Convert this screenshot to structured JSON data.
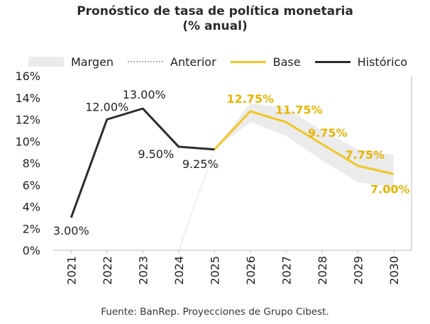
{
  "title_line1": "Pronóstico de tasa de política monetaria",
  "title_line2": "(% anual)",
  "source": "Fuente: BanRep. Proyecciones de Grupo Cibest.",
  "colors": {
    "historico": "#2b2b2b",
    "base": "#f2c623",
    "base_label": "#e8b400",
    "margen": "#ebebeb",
    "anterior": "#aaaaaa"
  },
  "chart_data": {
    "type": "line",
    "x": [
      "2021",
      "2022",
      "2023",
      "2024",
      "2025",
      "2026",
      "2027",
      "2028",
      "2029",
      "2030"
    ],
    "ylim": [
      0,
      16
    ],
    "yticks": [
      0,
      2,
      4,
      6,
      8,
      10,
      12,
      14,
      16
    ],
    "ytick_labels": [
      "0%",
      "2%",
      "4%",
      "6%",
      "8%",
      "10%",
      "12%",
      "14%",
      "16%"
    ],
    "legend_position": "top",
    "grid": false,
    "series": [
      {
        "name": "Margen",
        "kind": "band",
        "x": [
          "2025",
          "2026",
          "2027",
          "2028",
          "2029",
          "2030"
        ],
        "lower": [
          9.25,
          11.75,
          10.5,
          8.25,
          6.25,
          5.75
        ],
        "upper": [
          9.25,
          13.5,
          13.0,
          11.0,
          9.25,
          8.75
        ]
      },
      {
        "name": "Anterior",
        "kind": "dotted",
        "x": [
          "2024",
          "2025"
        ],
        "values": [
          0,
          9.25
        ]
      },
      {
        "name": "Base",
        "kind": "line",
        "x": [
          "2025",
          "2026",
          "2027",
          "2028",
          "2029",
          "2030"
        ],
        "values": [
          9.25,
          12.75,
          11.75,
          9.75,
          7.75,
          7.0
        ],
        "labels": [
          "",
          "12.75%",
          "11.75%",
          "9.75%",
          "7.75%",
          "7.00%"
        ]
      },
      {
        "name": "Histórico",
        "kind": "line",
        "x": [
          "2021",
          "2022",
          "2023",
          "2024",
          "2025"
        ],
        "values": [
          3.0,
          12.0,
          13.0,
          9.5,
          9.25
        ],
        "labels": [
          "3.00%",
          "12.00%",
          "13.00%",
          "9.50%",
          "9.25%"
        ]
      }
    ]
  }
}
